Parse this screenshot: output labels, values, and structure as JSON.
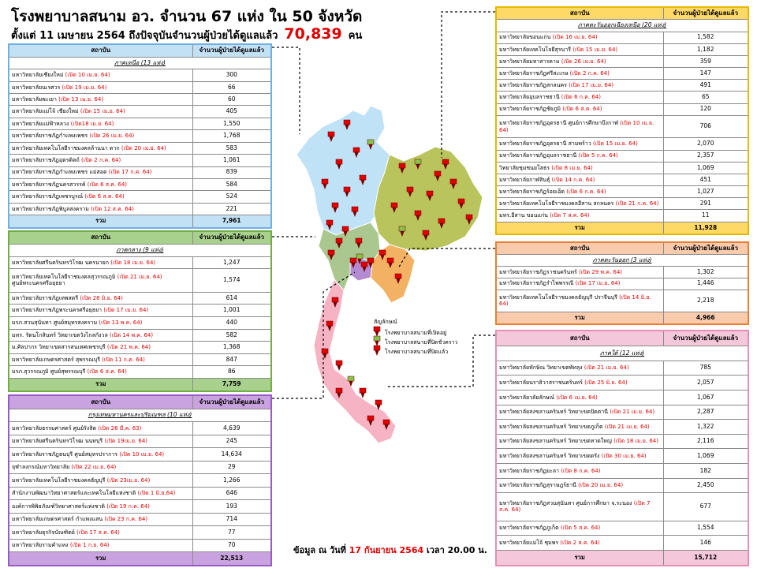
{
  "header": {
    "title": "โรงพยาบาลสนาม อว.  จำนวน 67 แห่ง ใน 50 จังหวัด",
    "subtitle": "ตั้งแต่  11 เมษายน 2564  ถึงปัจจุบันจำนวนผู้ป่วยได้ดูแลแล้ว",
    "total": "70,839",
    "unit": "คน"
  },
  "tables": [
    {
      "columns": [
        "สถาบัน",
        "จำนวนผู้ป่วยได้ดูแลแล้ว"
      ],
      "region": "ภาคเหนือ (13 แห่ง)",
      "rows": [
        {
          "name": "มหาวิทยาลัยเชียงใหม่",
          "opened": "(เปิด 10 เม.ย. 64)",
          "patients": "300"
        },
        {
          "name": "มหาวิทยาลัยนเรศวร",
          "opened": "(เปิด 19 เม.ย. 64)",
          "patients": "66"
        },
        {
          "name": "มหาวิทยาลัยพะเยา",
          "opened": "(เปิด 13 เม.ย. 64)",
          "patients": "60"
        },
        {
          "name": "มหาวิทยาลัยแม่โจ้ เชียงใหม่",
          "opened": "(เปิด 15 เม.ย. 64)",
          "patients": "405"
        },
        {
          "name": "มหาวิทยาลัยแม่ฟ้าหลวง",
          "opened": "(เปิด18 เม.ย. 64)",
          "patients": "1,550"
        },
        {
          "name": "มหาวิทยาลัยราชภัฏกำแพงเพชร",
          "opened": "(เปิด 26 เม.ย. 64)",
          "patients": "1,768"
        },
        {
          "name": "มหาวิทยาลัยเทคโนโลยีราชมงคลล้านนา ตาก",
          "opened": "(เปิด 20 เม.ย. 64)",
          "patients": "583"
        },
        {
          "name": "มหาวิทยาลัยราชภัฏอุตรดิตถ์",
          "opened": "(เปิด 2 ก.ค. 64)",
          "patients": "1,061"
        },
        {
          "name": "มหาวิทยาลัยราชภัฏกำแพงเพชร แม่สอด",
          "opened": "(เปิด 17 ก.ค. 64)",
          "patients": "839"
        },
        {
          "name": "มหาวิทยาลัยราชภัฏนครสวรรค์",
          "opened": "(เปิด 6 ส.ค. 64)",
          "patients": "584"
        },
        {
          "name": "มหาวิทยาลัยราชภัฏเพชรบูรณ์",
          "opened": "(เปิด 6 ส.ค. 64)",
          "patients": "524"
        },
        {
          "name": "มหาวิทยาลัยราชภัฏพิบูลสงคราม",
          "opened": "(เปิด 12 ส.ค. 64)",
          "patients": "221"
        }
      ],
      "total_label": "รวม",
      "total": "7,961"
    },
    {
      "columns": [
        "สถาบัน",
        "จำนวนผู้ป่วยได้ดูแลแล้ว"
      ],
      "region": "ภาคกลาง (9 แห่ง)",
      "rows": [
        {
          "name": "มหาวิทยาลัยศรีนครินทรวิโรฒ นครนายก",
          "opened": "(เปิด 18 เม.ย. 64)",
          "patients": "1,247"
        },
        {
          "name": "มหาวิทยาลัยเทคโนโลยีราชมงคลสุวรรณภูมิ",
          "opened": "(เปิด 21 เม.ย. 64)",
          "note": "ศูนย์พระนครศรีอยุธยา",
          "patients": "1,574"
        },
        {
          "name": "มหาวิทยาลัยราชภัฏเทพสตรี",
          "opened": "(เปิด 28 มิ.ย. 64)",
          "patients": "614"
        },
        {
          "name": "มหาวิทยาลัยราชภัฏพระนครศรีอยุธยา",
          "opened": "(เปิด 17 เม.ย. 64)",
          "patients": "1,001"
        },
        {
          "name": "มรภ.สวนสุนันทา ศูนย์สมุทรสงคราม",
          "opened": "(เปิด 13 พ.ค. 64)",
          "patients": "440"
        },
        {
          "name": "มทร. รัตนโกสินทร์  วิทยาเขตวังไกลกังวล",
          "opened": "(เปิด 14 พ.ค. 64)",
          "patients": "582"
        },
        {
          "name": "ม.ศิลปากร วิทยาเขตสารสนเทศเพชรบุรี",
          "opened": "(เปิด 21 พ.ค. 64)",
          "patients": "1,368"
        },
        {
          "name": "มหาวิทยาลัยเกษตรศาสตร์  สุพรรณบุรี",
          "opened": "(เปิด 11 ก.ค. 64)",
          "patients": "847"
        },
        {
          "name": "มรภ.สุวรรณภูมิ ศูนย์สุพรรณบุรี",
          "opened": "(เปิด 6 ส.ค. 64)",
          "patients": "86"
        }
      ],
      "total_label": "รวม",
      "total": "7,759"
    },
    {
      "columns": [
        "สถาบัน",
        "จำนวนผู้ป่วยได้ดูแลแล้ว"
      ],
      "region": "กรุงเทพมหานครและปริมณฑล (10 แห่ง)",
      "rows": [
        {
          "name": "มหาวิทยาลัยธรรมศาสตร์ ศูนย์รังสิต",
          "opened": "(เปิด 26 มี.ค. 63)",
          "patients": "4,639"
        },
        {
          "name": "มหาวิทยาลัยศรีนครินทรวิโรฒ นนทบุรี",
          "opened": "(เปิด 19เม.ย. 64)",
          "patients": "245"
        },
        {
          "name": "มหาวิทยาลัยราชภัฏธนบุรี ศูนย์สมุทรปราการ",
          "opened": "(เปิด 10 เม.ย. 64)",
          "patients": "14,634"
        },
        {
          "name": "จุฬาลงกรณ์มหาวิทยาลัย",
          "opened": "(เปิด 22 เม.ย. 64)",
          "patients": "29"
        },
        {
          "name": "มหาวิทยาลัยเทคโนโลยีราชมงคลธัญบุรี",
          "opened": "(เปิด 23เม.ย. 64)",
          "patients": "1,266"
        },
        {
          "name": "สำนักงานพัฒนาวิทยาศาสตร์และเทคโนโลยีแห่งชาติ",
          "opened": "(เปิด 1 มิ.ย.64)",
          "patients": "646"
        },
        {
          "name": "องค์การพิพิธภัณฑ์วิทยาศาสตร์แห่งชาติ",
          "opened": "(เปิด 19 ก.ค. 64)",
          "patients": "193"
        },
        {
          "name": "มหาวิทยาลัยเกษตรศาสตร์ กำแพงแสน",
          "opened": "(เปิด 23 ก.ค. 64)",
          "patients": "714"
        },
        {
          "name": "มหาวิทยาลัยธุรกิจบัณฑิตย์",
          "opened": "(เปิด 17 ส.ค. 64)",
          "patients": "77"
        },
        {
          "name": "มหาวิทยาลัยรามคำแหง",
          "opened": "(เปิด 1 ก.ย. 64)",
          "patients": "70"
        }
      ],
      "total_label": "รวม",
      "total": "22,513"
    },
    {
      "columns": [
        "สถาบัน",
        "จำนวนผู้ป่วยได้ดูแลแล้ว"
      ],
      "region": "ภาคตะวันออกเฉียงเหนือ  (20 แห่ง)",
      "rows": [
        {
          "name": "มหาวิทยาลัยขอนแก่น",
          "opened": "(เปิด 16 เม.ย. 64)",
          "patients": "1,582"
        },
        {
          "name": "มหาวิทยาลัยเทคโนโลยีสุรนารี",
          "opened": "(เปิด 15 เม.ย. 64)",
          "patients": "1,182"
        },
        {
          "name": "มหาวิทยาลัยมหาสารคาม",
          "opened": "(เปิด 26 เม.ย. 64)",
          "patients": "359"
        },
        {
          "name": "มหาวิทยาลัยราชภัฏศรีสะเกษ",
          "opened": "(เปิด 2 ก.ค. 64)",
          "patients": "147"
        },
        {
          "name": "มหาวิทยาลัยราชภัฏสกลนคร",
          "opened": "(เปิด 17 เม.ย. 64)",
          "patients": "491"
        },
        {
          "name": "มหาวิทยาลัยอุบลราชธานี",
          "opened": "(เปิด 6 ก.ค. 64)",
          "patients": "65"
        },
        {
          "name": "มหาวิทยาลัยราชภัฏชัยภูมิ",
          "opened": "(เปิด 6 ส.ค. 64)",
          "patients": "120"
        },
        {
          "name": "มหาวิทยาลัยราชภัฏอุดรธานี ศูนย์การศึกษาบึงกาฬ",
          "opened": "(เปิด 10 เม.ย. 64)",
          "patients": "706"
        },
        {
          "name": "มหาวิทยาลัยราชภัฏอุดรธานี สามพร้าว",
          "opened": "(เปิด 15 เม.ย. 64)",
          "patients": "2,070"
        },
        {
          "name": "มหาวิทยาลัยราชภัฏอุบลราชธานี",
          "opened": "(เปิด 5 ก.ค. 64)",
          "patients": "2,357"
        },
        {
          "name": "วิทยาลัยชุมชนยโสธร",
          "opened": "(เปิด 8 เม.ย. 64)",
          "patients": "1,069"
        },
        {
          "name": "มหาวิทยาลัยกาฬสินธุ์",
          "opened": "(เปิด 14 ก.ค. 64)",
          "patients": "451"
        },
        {
          "name": "มหาวิทยาลัยราชภัฏร้อยเอ็ด",
          "opened": "(เปิด 6 ก.ค. 64)",
          "patients": "1,027"
        },
        {
          "name": "มหาวิทยาลัยเทคโนโลยีราชมงคลอีสาน สกลนคร",
          "opened": "(เปิด 21 ก.ค. 64)",
          "patients": "291"
        },
        {
          "name": "มทร.อีสาน ขอนแก่น",
          "opened": "(เปิด 7 ส.ค. 64)",
          "patients": "11"
        }
      ],
      "total_label": "รวม",
      "total": "11,928"
    },
    {
      "columns": [
        "สถาบัน",
        "จำนวนผู้ป่วยได้ดูแลแล้ว"
      ],
      "region": "ภาคตะวันออก (3 แห่ง)",
      "rows": [
        {
          "name": "มหาวิทยาลัยราชภัฏราชนครินทร์",
          "opened": "(เปิด 29 พ.ค. 64)",
          "patients": "1,302"
        },
        {
          "name": "มหาวิทยาลัยราชภัฏรำไพพรรณี",
          "opened": "(เปิด 17 เม.ย. 64)",
          "patients": "1,446"
        },
        {
          "name": "มหาวิทยาลัยเทคโนโลยีราชมงคลธัญบุรี ปราจีนบุรี",
          "opened": "(เปิด 14 มิ.ย. 64)",
          "patients": "2,218"
        }
      ],
      "total_label": "รวม",
      "total": "4,966"
    },
    {
      "columns": [
        "สถาบัน",
        "จำนวนผู้ป่วยได้ดูแลแล้ว"
      ],
      "region": "ภาคใต้  (12 แห่ง)",
      "rows": [
        {
          "name": "มหาวิทยาลัยทักษิณ วิทยาเขตพัทลุง",
          "opened": "(เปิด 21 เม.ย. 64)",
          "patients": "785"
        },
        {
          "name": "มหาวิทยาลัยนราธิวาสราชนครินทร์",
          "opened": "(เปิด 25 มิ.ย. 64)",
          "patients": "2,057"
        },
        {
          "name": "มหาวิทยาลัยวลัยลักษณ์",
          "opened": "(เปิด 6 เม.ย. 64)",
          "patients": "1,067"
        },
        {
          "name": "มหาวิทยาลัยสงขลานครินทร์ วิทยาเขตปัตตานี",
          "opened": "(เปิด 21 เม.ย. 64)",
          "patients": "2,287"
        },
        {
          "name": "มหาวิทยาลัยสงขลานครินทร์ วิทยาเขตภูเก็ต",
          "opened": "(เปิด 21 เม.ย. 64)",
          "patients": "1,322"
        },
        {
          "name": "มหาวิทยาลัยสงขลานครินทร์  วิทยาเขตหาดใหญ่",
          "opened": "(เปิด 18 เม.ย. 64)",
          "patients": "2,116"
        },
        {
          "name": "มหาวิทยาลัยสงขลานครินทร์  วิทยาเขตตรัง",
          "opened": "(เปิด 30 เม.ย. 64)",
          "patients": "1,069"
        },
        {
          "name": "มหาวิทยาลัยราชภัฏยะลา",
          "opened": "(เปิด 8 ก.ค. 64)",
          "patients": "182"
        },
        {
          "name": "มหาวิทยาลัยราชภัฏสุราษฎร์ธานี",
          "opened": "(เปิด 20 เม.ย. 64)",
          "patients": "2,450"
        },
        {
          "name": "มหาวิทยาลัยราชภัฏสวนสุนันทา ศูนย์การศึกษา จ.ระนอง",
          "opened": "(เปิด 7 ส.ค. 64)",
          "patients": "677"
        },
        {
          "name": "มหาวิทยาลัยราชภัฏภูเก็ต",
          "opened": "(เปิด 5 ส.ค. 64)",
          "patients": "1,554"
        },
        {
          "name": "มหาวิทยาลัยแม่โจ้  ชุมพร",
          "opened": "(เปิด 2 ส.ค. 64)",
          "patients": "146"
        }
      ],
      "total_label": "รวม",
      "total": "15,712"
    }
  ],
  "map_legend": {
    "title": "สัญลักษณ์",
    "items": [
      "โรงพยาบาลสนามที่เปิดอยู่",
      "โรงพยาบาลสนามที่ปิดชั่วคราว",
      "โรงพยาบาลสนามที่ปิดแล้ว"
    ]
  },
  "footer": {
    "prefix": "ข้อมูล ณ วันที่",
    "date": "17 กันยายน 2564",
    "time": "เวลา 20.00 น."
  }
}
